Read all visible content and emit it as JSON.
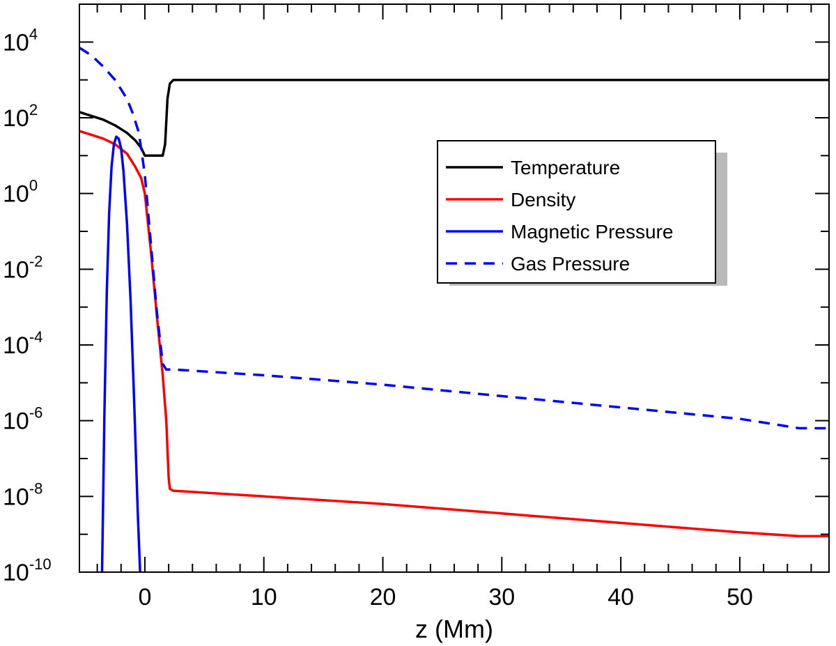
{
  "chart_data": {
    "type": "line",
    "title": "",
    "xlabel": "z (Mm)",
    "ylabel": "",
    "xlim": [
      -5.5,
      57.5
    ],
    "ylim_log10": [
      -10,
      5
    ],
    "yscale": "log",
    "grid": false,
    "legend_position": "upper-right",
    "x_ticks": [
      {
        "value": 0,
        "label": "0"
      },
      {
        "value": 10,
        "label": "10"
      },
      {
        "value": 20,
        "label": "20"
      },
      {
        "value": 30,
        "label": "30"
      },
      {
        "value": 40,
        "label": "40"
      },
      {
        "value": 50,
        "label": "50"
      }
    ],
    "y_ticks": [
      {
        "exp": -10,
        "base": "10",
        "sup": "-10"
      },
      {
        "exp": -8,
        "base": "10",
        "sup": "-8"
      },
      {
        "exp": -6,
        "base": "10",
        "sup": "-6"
      },
      {
        "exp": -4,
        "base": "10",
        "sup": "-4"
      },
      {
        "exp": -2,
        "base": "10",
        "sup": "-2"
      },
      {
        "exp": 0,
        "base": "10",
        "sup": "0"
      },
      {
        "exp": 2,
        "base": "10",
        "sup": "2"
      },
      {
        "exp": 4,
        "base": "10",
        "sup": "4"
      }
    ],
    "series": [
      {
        "name": "Temperature",
        "color": "#000000",
        "dash": "solid",
        "points_log10": [
          [
            -5.5,
            2.15
          ],
          [
            -4.5,
            2.05
          ],
          [
            -3.5,
            1.95
          ],
          [
            -2.5,
            1.8
          ],
          [
            -1.5,
            1.6
          ],
          [
            -0.8,
            1.4
          ],
          [
            -0.3,
            1.2
          ],
          [
            0.0,
            1.0
          ],
          [
            1.5,
            1.0
          ],
          [
            1.7,
            1.3
          ],
          [
            1.9,
            2.5
          ],
          [
            2.1,
            2.9
          ],
          [
            2.4,
            3.0
          ],
          [
            57.5,
            3.0
          ]
        ]
      },
      {
        "name": "Density",
        "color": "#ff0000",
        "dash": "solid",
        "points_log10": [
          [
            -5.5,
            1.65
          ],
          [
            -4.5,
            1.55
          ],
          [
            -3.5,
            1.45
          ],
          [
            -2.5,
            1.3
          ],
          [
            -1.5,
            1.05
          ],
          [
            -0.8,
            0.7
          ],
          [
            -0.3,
            0.4
          ],
          [
            0.0,
            0.0
          ],
          [
            0.5,
            -1.5
          ],
          [
            1.0,
            -3.2
          ],
          [
            1.5,
            -4.8
          ],
          [
            1.8,
            -6.0
          ],
          [
            2.0,
            -7.5
          ],
          [
            2.1,
            -7.8
          ],
          [
            2.4,
            -7.85
          ],
          [
            10.0,
            -8.0
          ],
          [
            20.0,
            -8.2
          ],
          [
            30.0,
            -8.45
          ],
          [
            40.0,
            -8.7
          ],
          [
            50.0,
            -8.95
          ],
          [
            55.0,
            -9.05
          ],
          [
            57.5,
            -9.05
          ]
        ]
      },
      {
        "name": "Magnetic Pressure",
        "color": "#0000ff",
        "dash": "solid",
        "points_log10": [
          [
            -3.6,
            -10.0
          ],
          [
            -3.4,
            -5.8
          ],
          [
            -3.2,
            -2.6
          ],
          [
            -3.0,
            -0.5
          ],
          [
            -2.8,
            0.7
          ],
          [
            -2.6,
            1.3
          ],
          [
            -2.4,
            1.5
          ],
          [
            -2.2,
            1.45
          ],
          [
            -2.0,
            1.2
          ],
          [
            -1.8,
            0.6
          ],
          [
            -1.5,
            -0.8
          ],
          [
            -1.2,
            -2.8
          ],
          [
            -0.9,
            -5.5
          ],
          [
            -0.6,
            -8.4
          ],
          [
            -0.4,
            -10.0
          ]
        ]
      },
      {
        "name": "Gas Pressure",
        "color": "#0000ff",
        "dash": "dashed",
        "points_log10": [
          [
            -5.5,
            3.85
          ],
          [
            -4.5,
            3.65
          ],
          [
            -3.5,
            3.35
          ],
          [
            -2.5,
            3.0
          ],
          [
            -1.5,
            2.5
          ],
          [
            -1.0,
            2.1
          ],
          [
            -0.5,
            1.6
          ],
          [
            0.0,
            0.5
          ],
          [
            0.5,
            -1.3
          ],
          [
            1.0,
            -3.1
          ],
          [
            1.5,
            -4.5
          ],
          [
            1.8,
            -4.65
          ],
          [
            2.5,
            -4.65
          ],
          [
            10.0,
            -4.8
          ],
          [
            20.0,
            -5.05
          ],
          [
            30.0,
            -5.35
          ],
          [
            40.0,
            -5.65
          ],
          [
            50.0,
            -5.95
          ],
          [
            55.0,
            -6.2
          ],
          [
            57.5,
            -6.2
          ]
        ]
      }
    ]
  }
}
